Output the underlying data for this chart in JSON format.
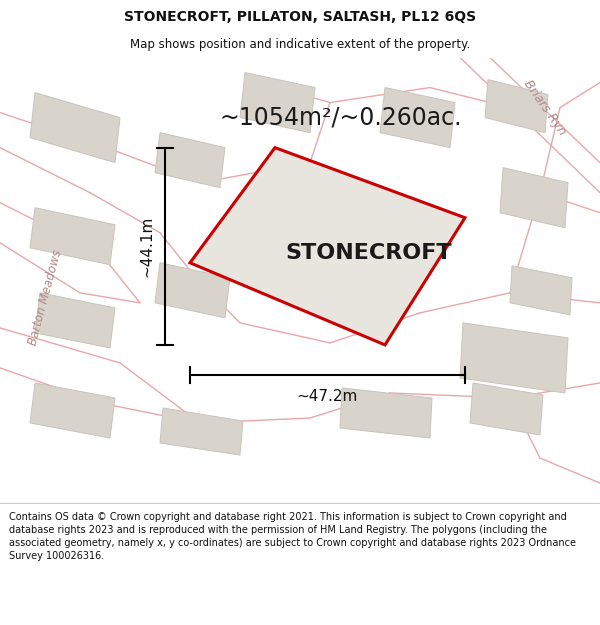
{
  "title_line1": "STONECROFT, PILLATON, SALTASH, PL12 6QS",
  "title_line2": "Map shows position and indicative extent of the property.",
  "property_label": "STONECROFT",
  "area_label": "~1054m²/~0.260ac.",
  "dim_horizontal": "~47.2m",
  "dim_vertical": "~44.1m",
  "road_label": "Briars Ryn",
  "road_label2": "Barton Meadows",
  "footer_text": "Contains OS data © Crown copyright and database right 2021. This information is subject to Crown copyright and database rights 2023 and is reproduced with the permission of HM Land Registry. The polygons (including the associated geometry, namely x, y co-ordinates) are subject to Crown copyright and database rights 2023 Ordnance Survey 100026316.",
  "bg_color": "#f2f0ed",
  "map_bg": "#f2f0ed",
  "property_fill": "#e8e4de",
  "property_edge": "#cc0000",
  "road_color": "#e8a8a8",
  "building_color": "#d8d4cc",
  "building_edge": "#c8c4bc",
  "title_bg": "#ffffff",
  "footer_bg": "#ffffff",
  "title_fontsize": 10,
  "subtitle_fontsize": 8.5,
  "area_fontsize": 17,
  "property_fontsize": 16,
  "dim_fontsize": 11,
  "footer_fontsize": 7,
  "road_label_fontsize": 9,
  "road_label2_fontsize": 8.5
}
